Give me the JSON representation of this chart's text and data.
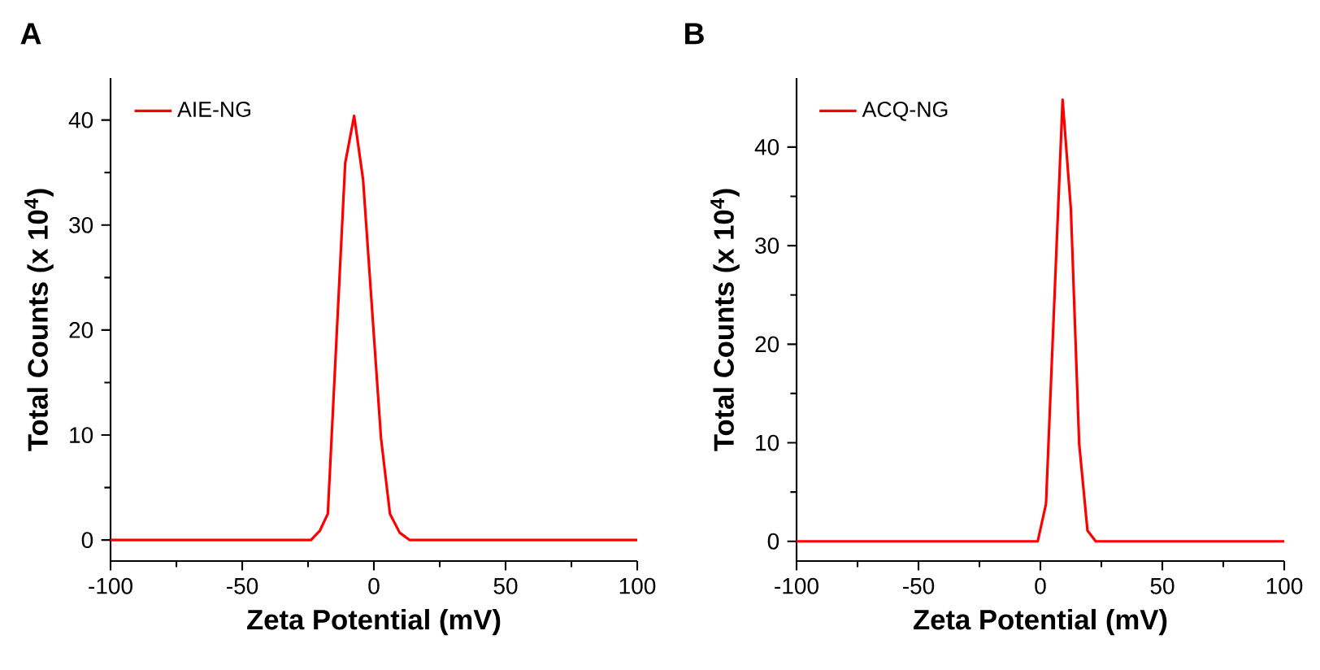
{
  "chart_data": [
    {
      "type": "line",
      "title": "A",
      "xlabel": "Zeta Potential (mV)",
      "ylabel": "Total Counts (x 10$^{4}$)",
      "legend": "top left",
      "xlim": [
        -100,
        100
      ],
      "xticks": [
        -100,
        -50,
        0,
        50,
        100
      ],
      "ylim": [
        -2,
        44
      ],
      "yticks": [
        0,
        10,
        20,
        30,
        40
      ],
      "series": [
        {
          "name": "AIE-NG",
          "color": "#ff0000",
          "x": [
            -100,
            -23.9,
            -20.5,
            -17.5,
            -10.9,
            -7.5,
            -4.1,
            2.7,
            6.1,
            9.8,
            13.6,
            100
          ],
          "values": [
            0,
            0,
            0.9,
            2.5,
            35.9,
            40.4,
            34.3,
            9.7,
            2.5,
            0.7,
            0,
            0
          ]
        }
      ]
    },
    {
      "type": "line",
      "title": "B",
      "xlabel": "Zeta Potential (mV)",
      "ylabel": "Total Counts (x 10$^{4}$)",
      "legend": "top left",
      "xlim": [
        -100,
        100
      ],
      "xticks": [
        -100,
        -50,
        0,
        50,
        100
      ],
      "ylim": [
        -2,
        47
      ],
      "yticks": [
        0,
        10,
        20,
        30,
        40
      ],
      "series": [
        {
          "name": "ACQ-NG",
          "color": "#ff0000",
          "x": [
            -100,
            -1.1,
            2.3,
            9.1,
            12.5,
            15.9,
            19.3,
            22.7,
            100
          ],
          "values": [
            0,
            0,
            3.8,
            44.8,
            33.7,
            9.9,
            1.1,
            0,
            0
          ]
        }
      ]
    }
  ]
}
